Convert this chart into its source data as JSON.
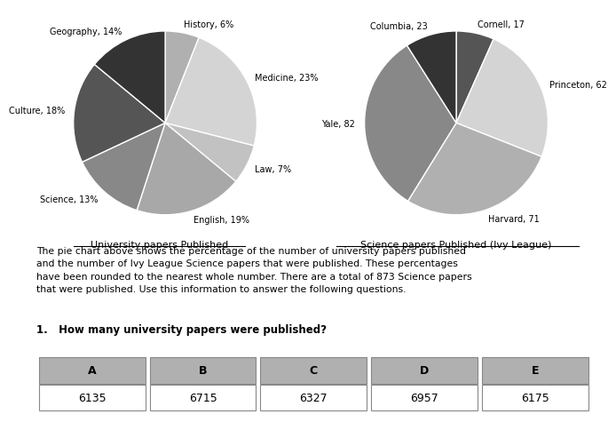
{
  "chart1_labels": [
    "History, 6%",
    "Medicine, 23%",
    "Law, 7%",
    "English, 19%",
    "Science, 13%",
    "Culture, 18%",
    "Geography, 14%"
  ],
  "chart1_values": [
    6,
    23,
    7,
    19,
    13,
    18,
    14
  ],
  "chart1_colors": [
    "#b0b0b0",
    "#d4d4d4",
    "#c2c2c2",
    "#a8a8a8",
    "#888888",
    "#555555",
    "#333333"
  ],
  "chart1_title": "University papers Published",
  "chart1_startangle": 90,
  "chart2_labels": [
    "Cornell, 17",
    "Princeton, 62",
    "Harvard, 71",
    "Yale, 82",
    "Columbia, 23"
  ],
  "chart2_values": [
    17,
    62,
    71,
    82,
    23
  ],
  "chart2_colors": [
    "#555555",
    "#d4d4d4",
    "#b0b0b0",
    "#888888",
    "#333333"
  ],
  "chart2_title": "Science papers Published (Ivy League)",
  "chart2_startangle": 90,
  "body_text": "The pie chart above shows the percentage of the number of university papers published\nand the number of Ivy League Science papers that were published. These percentages\nhave been rounded to the nearest whole number. There are a total of 873 Science papers\nthat were published. Use this information to answer the following questions.",
  "question_text": "1.   How many university papers were published?",
  "table_headers": [
    "A",
    "B",
    "C",
    "D",
    "E"
  ],
  "table_values": [
    "6135",
    "6715",
    "6327",
    "6957",
    "6175"
  ],
  "header_color": "#b0b0b0",
  "cell_color": "#ffffff",
  "border_color": "#888888",
  "bg_color": "#ffffff"
}
